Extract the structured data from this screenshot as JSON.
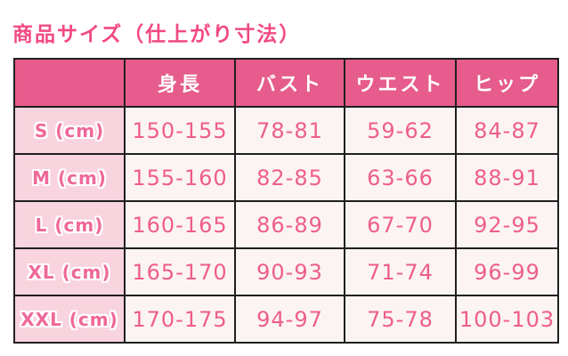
{
  "title": "商品サイズ（仕上がり寸法）",
  "colors": {
    "page_bg": "#ffffff",
    "title_pink": "#f24983",
    "header_bg": "#e65c8c",
    "header_text": "#ffffff",
    "label_bg": "#f8d4df",
    "label_text": "#ef6899",
    "cell_bg": "#fcf4f3",
    "cell_text": "#ee5e88",
    "border": "#1f1f1f"
  },
  "chart_data": {
    "type": "table",
    "title": "商品サイズ（仕上がり寸法）",
    "columns": [
      "",
      "身長",
      "バスト",
      "ウエスト",
      "ヒップ"
    ],
    "unit": "cm",
    "rows": [
      {
        "label": "S (cm)",
        "values": [
          "150-155",
          "78-81",
          "59-62",
          "84-87"
        ]
      },
      {
        "label": "M (cm)",
        "values": [
          "155-160",
          "82-85",
          "63-66",
          "88-91"
        ]
      },
      {
        "label": "L (cm)",
        "values": [
          "160-165",
          "86-89",
          "67-70",
          "92-95"
        ]
      },
      {
        "label": "XL (cm)",
        "values": [
          "165-170",
          "90-93",
          "71-74",
          "96-99"
        ]
      },
      {
        "label": "XXL (cm)",
        "values": [
          "170-175",
          "94-97",
          "75-78",
          "100-103"
        ]
      }
    ]
  }
}
